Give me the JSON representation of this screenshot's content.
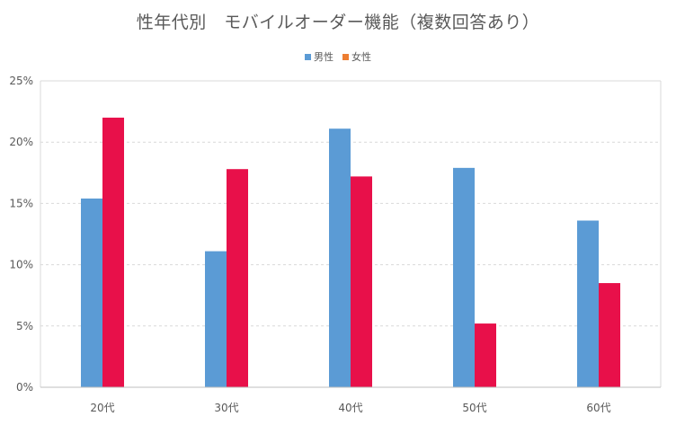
{
  "chart_data": {
    "type": "bar",
    "title": "性年代別　モバイルオーダー機能（複数回答あり）",
    "categories": [
      "20代",
      "30代",
      "40代",
      "50代",
      "60代"
    ],
    "series": [
      {
        "name": "男性",
        "color": "#5b9bd5",
        "values": [
          15.4,
          11.1,
          21.1,
          17.9,
          13.6
        ]
      },
      {
        "name": "女性",
        "color": "#e8104a",
        "values": [
          22.0,
          17.8,
          17.2,
          5.2,
          8.5
        ]
      }
    ],
    "legend_colors": [
      "#5b9bd5",
      "#ed7d31"
    ],
    "y_ticks": [
      "0%",
      "5%",
      "10%",
      "15%",
      "20%",
      "25%"
    ],
    "ylim": [
      0,
      25
    ],
    "grid": true,
    "legend_position": "top"
  }
}
